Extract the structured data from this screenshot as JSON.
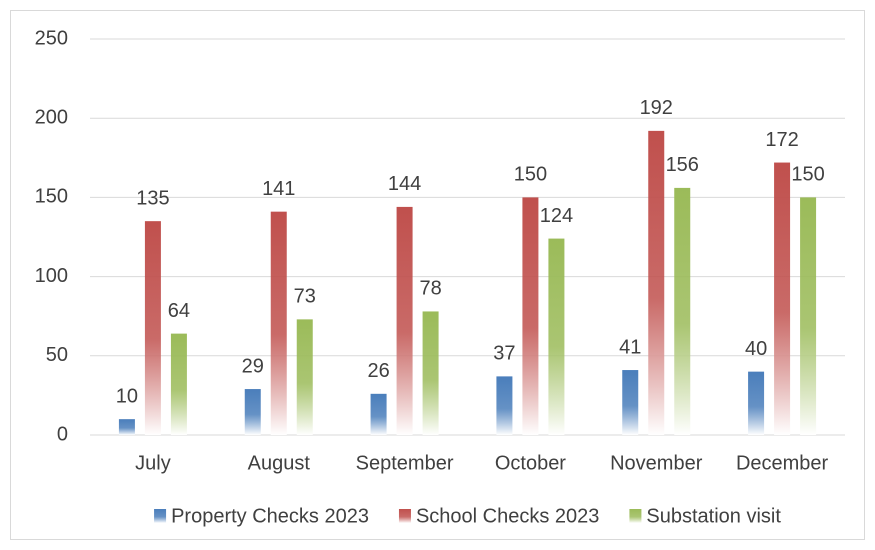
{
  "chart_data": {
    "type": "bar",
    "categories": [
      "July",
      "August",
      "September",
      "October",
      "November",
      "December"
    ],
    "series": [
      {
        "name": "Property Checks 2023",
        "color": "#4a7ebb",
        "values": [
          10,
          29,
          26,
          37,
          41,
          40
        ]
      },
      {
        "name": "School Checks 2023",
        "color": "#c0504d",
        "values": [
          135,
          141,
          144,
          150,
          192,
          172
        ]
      },
      {
        "name": "Substation visit",
        "color": "#9bbb59",
        "values": [
          64,
          73,
          78,
          124,
          156,
          150
        ]
      }
    ],
    "ylim": [
      0,
      250
    ],
    "yticks": [
      0,
      50,
      100,
      150,
      200,
      250
    ],
    "grid": true,
    "legend": "bottom"
  }
}
